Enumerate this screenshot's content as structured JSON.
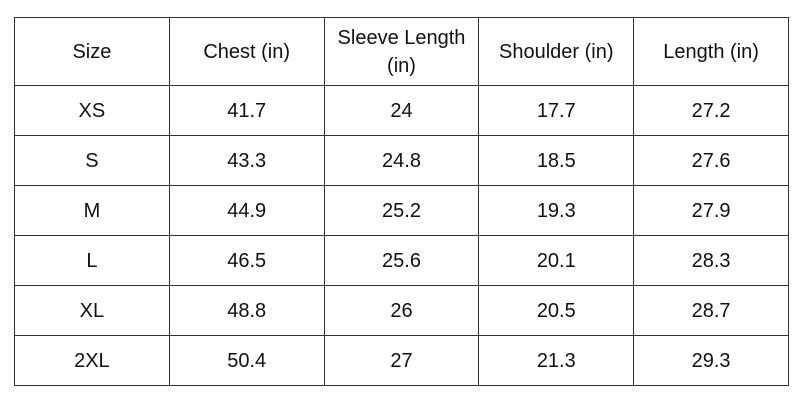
{
  "table": {
    "header": [
      "Size",
      "Chest (in)",
      "Sleeve Length (in)",
      "Shoulder (in)",
      "Length (in)"
    ],
    "rows": [
      [
        "XS",
        "41.7",
        "24",
        "17.7",
        "27.2"
      ],
      [
        "S",
        "43.3",
        "24.8",
        "18.5",
        "27.6"
      ],
      [
        "M",
        "44.9",
        "25.2",
        "19.3",
        "27.9"
      ],
      [
        "L",
        "46.5",
        "25.6",
        "20.1",
        "28.3"
      ],
      [
        "XL",
        "48.8",
        "26",
        "20.5",
        "28.7"
      ],
      [
        "2XL",
        "50.4",
        "27",
        "21.3",
        "29.3"
      ]
    ]
  }
}
